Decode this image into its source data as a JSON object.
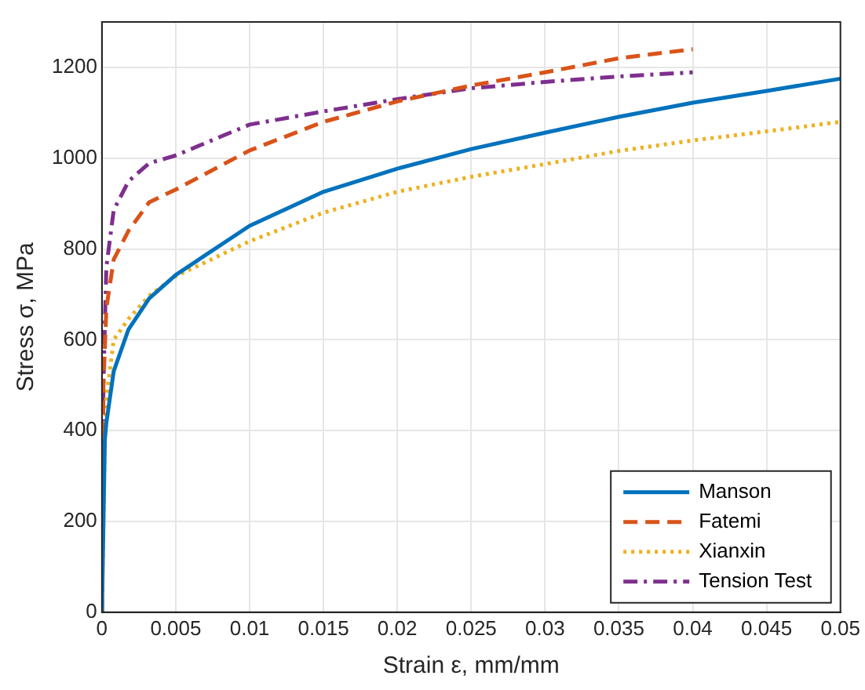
{
  "chart_data": {
    "type": "line",
    "xlabel": "Strain ε, mm/mm",
    "ylabel": "Stress σ, MPa",
    "xlim": [
      0,
      0.05
    ],
    "xticks": [
      0,
      0.005,
      0.01,
      0.015,
      0.02,
      0.025,
      0.03,
      0.035,
      0.04,
      0.045,
      0.05
    ],
    "ylim": [
      0,
      1300
    ],
    "yticks": [
      0,
      200,
      400,
      600,
      800,
      1000,
      1200
    ],
    "grid": true,
    "legend": "bottom right",
    "marker": "none",
    "series": [
      {
        "name": "Manson",
        "color": "#0072bd",
        "line_style": "solid",
        "x": [
          0,
          0.0002,
          0.0003,
          0.0008,
          0.0018,
          0.0032,
          0.005,
          0.01,
          0.015,
          0.02,
          0.025,
          0.03,
          0.035,
          0.04,
          0.045,
          0.05
        ],
        "values": [
          0,
          380,
          417,
          531,
          623,
          691,
          743,
          851,
          926,
          977,
          1020,
          1056,
          1091,
          1122,
          1148,
          1175
        ]
      },
      {
        "name": "Fatemi",
        "color": "#d95319",
        "line_style": "dashed",
        "x": [
          0,
          0.0001,
          0.0003,
          0.0008,
          0.0018,
          0.0032,
          0.005,
          0.01,
          0.015,
          0.02,
          0.025,
          0.03,
          0.035,
          0.04
        ],
        "values": [
          0,
          500,
          669,
          777,
          840,
          903,
          931,
          1017,
          1080,
          1125,
          1160,
          1189,
          1220,
          1240
        ]
      },
      {
        "name": "Xianxin",
        "color": "#edb120",
        "line_style": "dotted",
        "x": [
          0,
          0.0002,
          0.0003,
          0.0008,
          0.0018,
          0.0032,
          0.005,
          0.01,
          0.015,
          0.02,
          0.025,
          0.03,
          0.035,
          0.04,
          0.045,
          0.05
        ],
        "values": [
          0,
          400,
          470,
          600,
          646,
          697,
          740,
          817,
          880,
          926,
          959,
          987,
          1016,
          1039,
          1059,
          1080
        ]
      },
      {
        "name": "Tension Test",
        "color": "#7e2f8e",
        "line_style": "dashdot",
        "x": [
          0,
          0.0001,
          0.0002,
          0.0003,
          0.0008,
          0.0018,
          0.0032,
          0.005,
          0.01,
          0.015,
          0.02,
          0.025,
          0.03,
          0.035,
          0.04
        ],
        "values": [
          0,
          500,
          634,
          760,
          886,
          949,
          989,
          1006,
          1074,
          1103,
          1130,
          1154,
          1168,
          1180,
          1189
        ]
      }
    ]
  }
}
